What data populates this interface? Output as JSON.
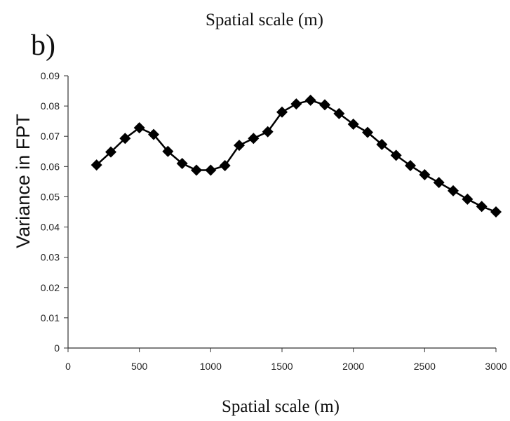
{
  "header": {
    "top_caption": "Spatial scale (m)",
    "panel_label": "b)"
  },
  "chart_data": {
    "type": "line",
    "xlabel": "Spatial scale (m)",
    "ylabel": "Variance in FPT",
    "xlim": [
      0,
      3000
    ],
    "ylim": [
      0,
      0.09
    ],
    "xticks": [
      0,
      500,
      1000,
      1500,
      2000,
      2500,
      3000
    ],
    "yticks": [
      0,
      0.01,
      0.02,
      0.03,
      0.04,
      0.05,
      0.06,
      0.07,
      0.08,
      0.09
    ],
    "xtick_labels": [
      "0",
      "500",
      "1000",
      "1500",
      "2000",
      "2500",
      "3000"
    ],
    "ytick_labels": [
      "0",
      "0.01",
      "0.02",
      "0.03",
      "0.04",
      "0.05",
      "0.06",
      "0.07",
      "0.08",
      "0.09"
    ],
    "grid": false,
    "marker": "diamond",
    "color": "#000000",
    "series": [
      {
        "x": [
          200,
          300,
          400,
          500,
          600,
          700,
          800,
          900,
          1000,
          1100,
          1200,
          1300,
          1400,
          1500,
          1600,
          1700,
          1800,
          1900,
          2000,
          2100,
          2200,
          2300,
          2400,
          2500,
          2600,
          2700,
          2800,
          2900,
          3000
        ],
        "y": [
          0.0605,
          0.0648,
          0.0693,
          0.0728,
          0.0706,
          0.065,
          0.061,
          0.0588,
          0.0588,
          0.0603,
          0.067,
          0.0693,
          0.0715,
          0.078,
          0.0807,
          0.0819,
          0.0804,
          0.0775,
          0.074,
          0.0713,
          0.0673,
          0.0637,
          0.0603,
          0.0573,
          0.0547,
          0.052,
          0.0492,
          0.0468,
          0.045
        ]
      }
    ]
  }
}
